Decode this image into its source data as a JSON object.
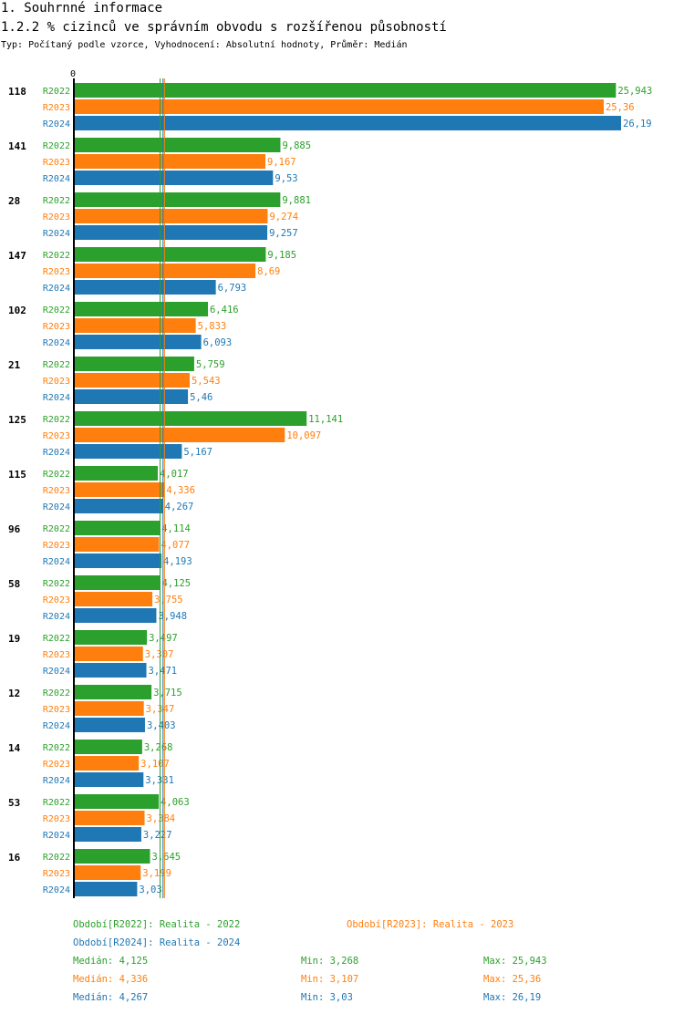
{
  "header": {
    "title": "1. Souhrnné informace",
    "subtitle": "1.2.2 % cizinců ve správním obvodu s rozšířenou působností",
    "meta": "Typ: Počítaný podle vzorce, Vyhodnocení: Absolutní hodnoty, Průměr: Medián"
  },
  "colors": {
    "R2022": "#2ca02c",
    "R2023": "#ff7f0e",
    "R2024": "#1f77b4"
  },
  "chart_data": {
    "type": "bar",
    "orientation": "horizontal",
    "axis_zero_label": "0",
    "xlim": [
      0,
      26.19
    ],
    "series_names": [
      "R2022",
      "R2023",
      "R2024"
    ],
    "groups": [
      {
        "label": "118",
        "values": [
          25.943,
          25.36,
          26.19
        ],
        "labels": [
          "25,943",
          "25,36",
          "26,19"
        ]
      },
      {
        "label": "141",
        "values": [
          9.885,
          9.167,
          9.53
        ],
        "labels": [
          "9,885",
          "9,167",
          "9,53"
        ]
      },
      {
        "label": "28",
        "values": [
          9.881,
          9.274,
          9.257
        ],
        "labels": [
          "9,881",
          "9,274",
          "9,257"
        ]
      },
      {
        "label": "147",
        "values": [
          9.185,
          8.69,
          6.793
        ],
        "labels": [
          "9,185",
          "8,69",
          "6,793"
        ]
      },
      {
        "label": "102",
        "values": [
          6.416,
          5.833,
          6.093
        ],
        "labels": [
          "6,416",
          "5,833",
          "6,093"
        ]
      },
      {
        "label": "21",
        "values": [
          5.759,
          5.543,
          5.46
        ],
        "labels": [
          "5,759",
          "5,543",
          "5,46"
        ]
      },
      {
        "label": "125",
        "values": [
          11.141,
          10.097,
          5.167
        ],
        "labels": [
          "11,141",
          "10,097",
          "5,167"
        ]
      },
      {
        "label": "115",
        "values": [
          4.017,
          4.336,
          4.267
        ],
        "labels": [
          "4,017",
          "4,336",
          "4,267"
        ]
      },
      {
        "label": "96",
        "values": [
          4.114,
          4.077,
          4.193
        ],
        "labels": [
          "4,114",
          "4,077",
          "4,193"
        ]
      },
      {
        "label": "58",
        "values": [
          4.125,
          3.755,
          3.948
        ],
        "labels": [
          "4,125",
          "3,755",
          "3,948"
        ]
      },
      {
        "label": "19",
        "values": [
          3.497,
          3.307,
          3.471
        ],
        "labels": [
          "3,497",
          "3,307",
          "3,471"
        ]
      },
      {
        "label": "12",
        "values": [
          3.715,
          3.347,
          3.403
        ],
        "labels": [
          "3,715",
          "3,347",
          "3,403"
        ]
      },
      {
        "label": "14",
        "values": [
          3.268,
          3.107,
          3.331
        ],
        "labels": [
          "3,268",
          "3,107",
          "3,331"
        ]
      },
      {
        "label": "53",
        "values": [
          4.063,
          3.384,
          3.227
        ],
        "labels": [
          "4,063",
          "3,384",
          "3,227"
        ]
      },
      {
        "label": "16",
        "values": [
          3.645,
          3.199,
          3.03
        ],
        "labels": [
          "3,645",
          "3,199",
          "3,03"
        ]
      }
    ],
    "median_lines": [
      4.125,
      4.336,
      4.267
    ]
  },
  "legend": {
    "r2022": "Období[R2022]: Realita - 2022",
    "r2023": "Období[R2023]: Realita - 2023",
    "r2024": "Období[R2024]: Realita - 2024"
  },
  "stats": [
    {
      "median": "Medián: 4,125",
      "min": "Min: 3,268",
      "max": "Max: 25,943"
    },
    {
      "median": "Medián: 4,336",
      "min": "Min: 3,107",
      "max": "Max: 25,36"
    },
    {
      "median": "Medián: 4,267",
      "min": "Min: 3,03",
      "max": "Max: 26,19"
    }
  ]
}
